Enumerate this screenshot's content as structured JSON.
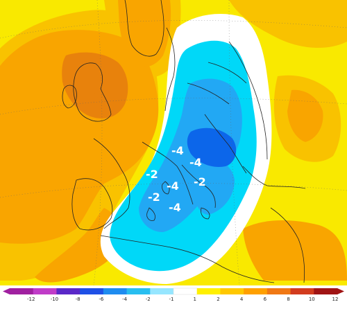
{
  "map": {
    "palette": {
      "dark_orange": "#e8820c",
      "orange": "#f9a500",
      "light_orange": "#f9c200",
      "yellow": "#f9e900",
      "white": "#ffffff",
      "cyan": "#00d8f8",
      "light_blue": "#22a8f4",
      "blue": "#0c66ea",
      "coast": "#222222"
    },
    "anomaly_labels": [
      "-4",
      "-4",
      "-2",
      "-2",
      "-4",
      "-2",
      "-4"
    ]
  },
  "colorbar": {
    "ticks": [
      "-12",
      "-10",
      "-8",
      "-6",
      "-4",
      "-2",
      "-1",
      "1",
      "2",
      "4",
      "6",
      "8",
      "10",
      "12"
    ],
    "colors": [
      "#a020a0",
      "#c03cc8",
      "#5a28c8",
      "#1e50e6",
      "#1e8cf0",
      "#28bef0",
      "#96e6ff",
      "#ffffff",
      "#fff000",
      "#ffc800",
      "#ffa000",
      "#f07814",
      "#d23c1e",
      "#a01414"
    ]
  }
}
